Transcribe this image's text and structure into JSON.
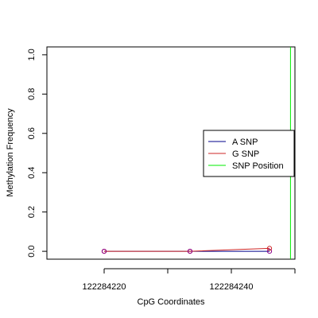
{
  "chart_data": {
    "type": "line",
    "title": "",
    "xlabel": "CpG Coordinates",
    "ylabel": "Methylation Frequency",
    "xlim": [
      122284211,
      122284250
    ],
    "ylim": [
      -0.04,
      1.04
    ],
    "x_ticks": [
      122284220,
      122284230,
      122284240,
      122284250
    ],
    "x_tick_labels": [
      "122284220",
      "",
      "122284240",
      ""
    ],
    "y_ticks": [
      0,
      0.2,
      0.4,
      0.6,
      0.8,
      1.0
    ],
    "y_tick_labels": [
      "0.0",
      "0.2",
      "0.4",
      "0.6",
      "0.8",
      "1.0"
    ],
    "series": [
      {
        "name": "A SNP",
        "color": "#00008b",
        "x": [
          122284220,
          122284233.5,
          122284246
        ],
        "y": [
          0.0,
          0.0,
          0.0
        ]
      },
      {
        "name": "G SNP",
        "color": "#cd2626",
        "x": [
          122284220,
          122284233.5,
          122284246
        ],
        "y": [
          0.0,
          0.0,
          0.015
        ]
      }
    ],
    "markers": [
      {
        "x": 122284220,
        "y": 0.0,
        "color": "#cd2626"
      },
      {
        "x": 122284220,
        "y": 0.0,
        "color": "#8b008b"
      },
      {
        "x": 122284233.5,
        "y": 0.0,
        "color": "#cd2626"
      },
      {
        "x": 122284233.5,
        "y": 0.0,
        "color": "#8b008b"
      },
      {
        "x": 122284246,
        "y": 0.0,
        "color": "#8b008b"
      },
      {
        "x": 122284246,
        "y": 0.015,
        "color": "#cd2626"
      }
    ],
    "snp_position": {
      "name": "SNP Position",
      "x": 122284249.3,
      "color": "#00ee00"
    },
    "legend": {
      "placement": "right",
      "entries": [
        {
          "label": "A SNP",
          "color": "#00008b"
        },
        {
          "label": "G SNP",
          "color": "#cd2626"
        },
        {
          "label": "SNP Position",
          "color": "#00ee00"
        }
      ]
    },
    "grid": false
  }
}
